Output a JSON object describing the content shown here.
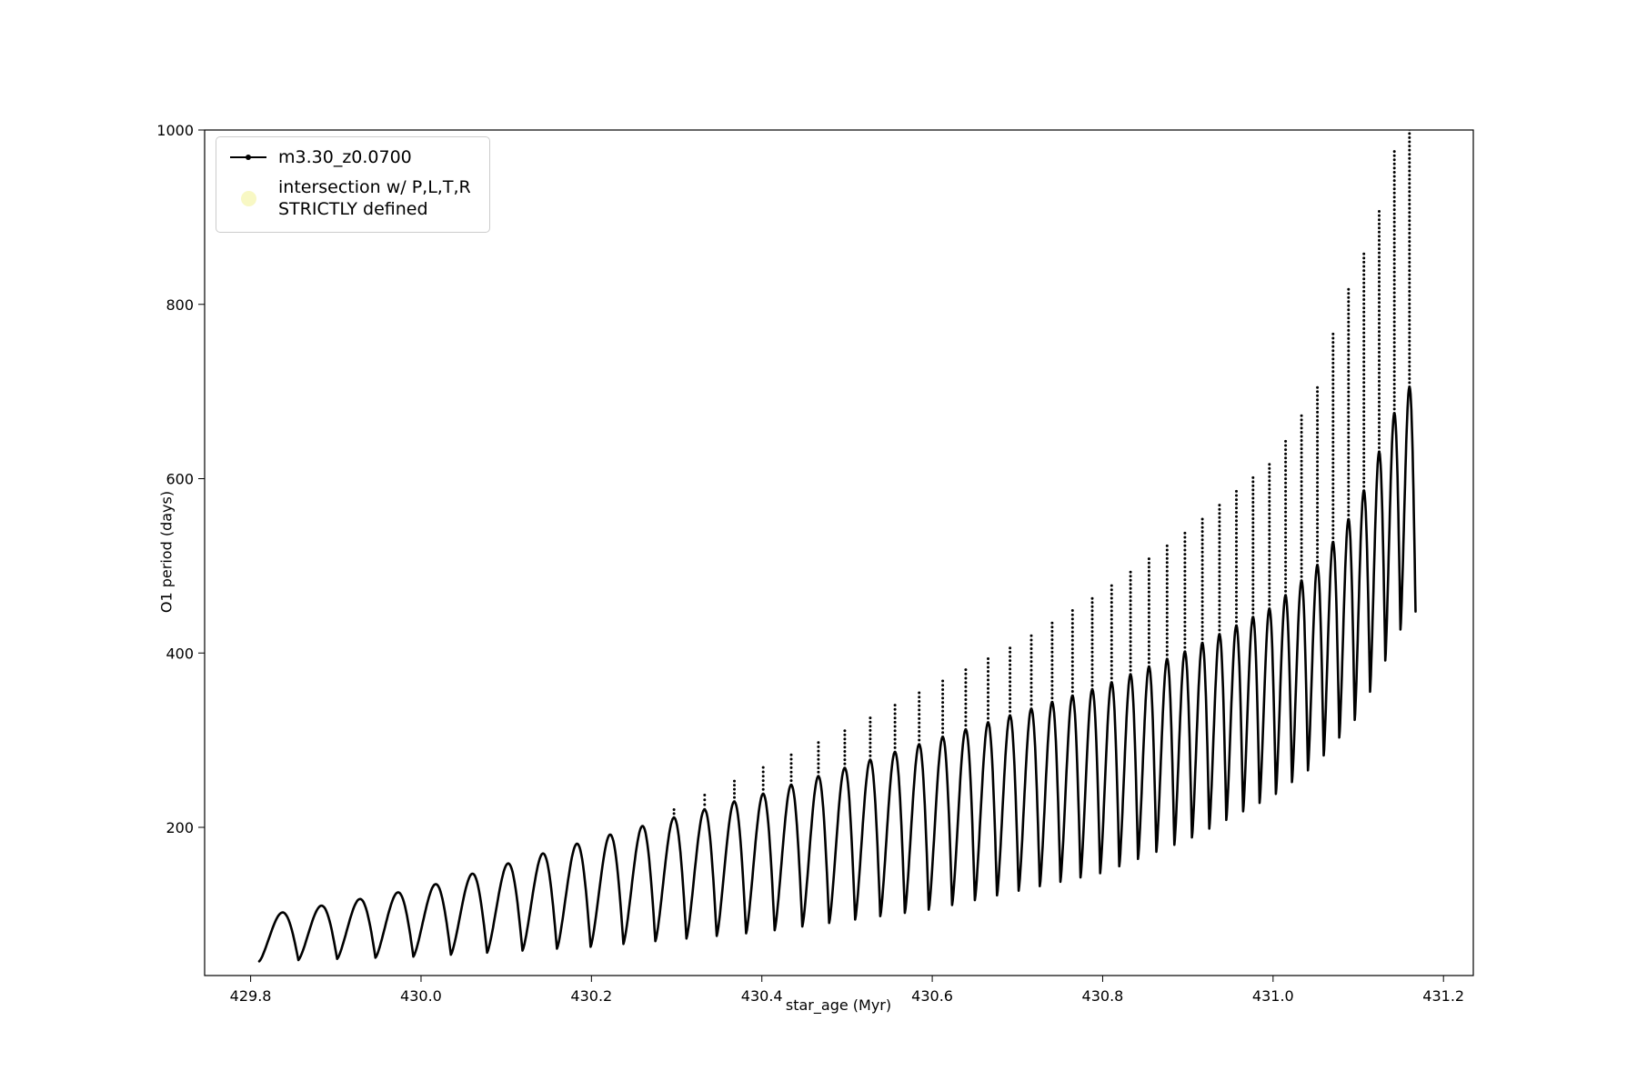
{
  "figure": {
    "background": "#ffffff"
  },
  "legend": {
    "entries": [
      {
        "label": "m3.30_z0.0700",
        "marker": "line-dot-marker",
        "color": "#000000"
      },
      {
        "label_line1": "intersection w/ P,L,T,R",
        "label_line2": "STRICTLY defined",
        "marker": "dot-marker",
        "color": "#f8f8c4"
      }
    ]
  },
  "chart_data": {
    "type": "line",
    "title": "",
    "xlabel": "star_age (Myr)",
    "ylabel": "O1 period (days)",
    "xlim": [
      429.746,
      431.235
    ],
    "ylim": [
      30,
      1000
    ],
    "grid": false,
    "legend_position": "upper left",
    "xticks": [
      429.8,
      430.0,
      430.2,
      430.4,
      430.6,
      430.8,
      431.0,
      431.2
    ],
    "xtick_labels": [
      "429.8",
      "430.0",
      "430.2",
      "430.4",
      "430.6",
      "430.8",
      "431.0",
      "431.2"
    ],
    "yticks": [
      200,
      400,
      600,
      800,
      1000
    ],
    "ytick_labels": [
      "200",
      "400",
      "600",
      "800",
      "1000"
    ],
    "series": [
      {
        "name": "m3.30_z0.0700",
        "color": "#000000",
        "style": "line-with-point-markers",
        "description": "Sawtooth pulsation of O1 period vs star age: each pulse rises from the lower envelope to the upper envelope then drops sharply; from ~430.3 Myr onward each pulse peak carries a dotted vertical spike reaching the spike envelope, the last spikes clipping at 1000 days.",
        "pulse_peak_fraction": 0.6,
        "pulse_start_times": [
          429.81,
          429.856,
          429.9015,
          429.9465,
          429.991,
          430.035,
          430.0775,
          430.119,
          430.1595,
          430.199,
          430.2375,
          430.275,
          430.3115,
          430.347,
          430.3815,
          430.415,
          430.4475,
          430.479,
          430.5095,
          430.539,
          430.5678,
          430.5959,
          430.6233,
          430.65,
          430.676,
          430.7014,
          430.7262,
          430.7504,
          430.774,
          430.797,
          430.8195,
          430.8415,
          430.863,
          430.8841,
          430.9048,
          430.9251,
          430.9451,
          430.9648,
          430.9842,
          431.0033,
          431.0222,
          431.0409,
          431.0594,
          431.0777,
          431.0958,
          431.1138,
          431.1317,
          431.1495,
          431.1672
        ],
        "envelope_base": [
          [
            429.8,
            46
          ],
          [
            430.0,
            52
          ],
          [
            430.2,
            63
          ],
          [
            430.4,
            80
          ],
          [
            430.6,
            106
          ],
          [
            430.8,
            148
          ],
          [
            430.9,
            186
          ],
          [
            431.0,
            236
          ],
          [
            431.05,
            272
          ],
          [
            431.1,
            328
          ],
          [
            431.15,
            428
          ],
          [
            431.2,
            485
          ]
        ],
        "envelope_top": [
          [
            429.8,
            96
          ],
          [
            430.0,
            130
          ],
          [
            430.2,
            186
          ],
          [
            430.4,
            238
          ],
          [
            430.6,
            300
          ],
          [
            430.8,
            362
          ],
          [
            430.9,
            403
          ],
          [
            431.0,
            453
          ],
          [
            431.05,
            498
          ],
          [
            431.1,
            570
          ],
          [
            431.15,
            694
          ],
          [
            431.2,
            750
          ]
        ],
        "envelope_spike": [
          [
            429.8,
            0
          ],
          [
            430.25,
            195
          ],
          [
            430.3,
            222
          ],
          [
            430.4,
            268
          ],
          [
            430.5,
            312
          ],
          [
            430.6,
            362
          ],
          [
            430.7,
            410
          ],
          [
            430.8,
            470
          ],
          [
            430.9,
            540
          ],
          [
            431.0,
            620
          ],
          [
            431.05,
            698
          ],
          [
            431.08,
            798
          ],
          [
            431.12,
            888
          ],
          [
            431.14,
            970
          ],
          [
            431.16,
            1015
          ],
          [
            431.2,
            1020
          ]
        ]
      }
    ]
  }
}
